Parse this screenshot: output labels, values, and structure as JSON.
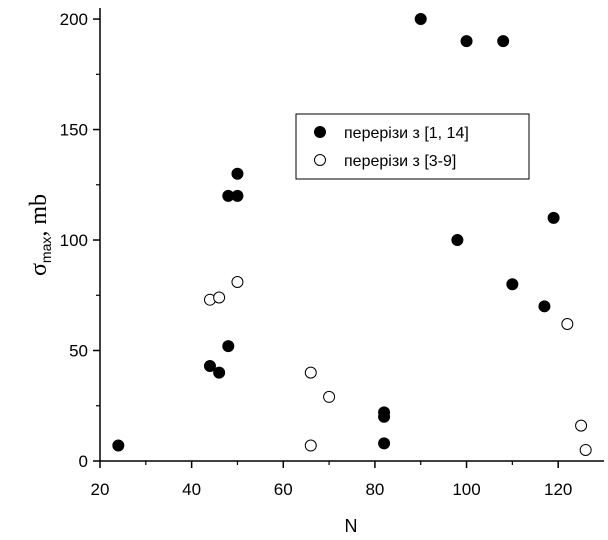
{
  "chart_data": {
    "type": "scatter",
    "xlabel": "N",
    "ylabel_main": "σ",
    "ylabel_sub": "max",
    "ylabel_unit": ", mb",
    "xlim": [
      20,
      130
    ],
    "ylim": [
      0,
      205
    ],
    "x_ticks": [
      20,
      40,
      60,
      80,
      100,
      120
    ],
    "y_ticks": [
      0,
      50,
      100,
      150,
      200
    ],
    "legend_position": "center-right",
    "series": [
      {
        "name": "перерізи з [1, 14]",
        "marker": "filled-circle",
        "color": "#000000",
        "points": [
          [
            24,
            7
          ],
          [
            44,
            43
          ],
          [
            46,
            40
          ],
          [
            48,
            52
          ],
          [
            48,
            120
          ],
          [
            50,
            120
          ],
          [
            50,
            130
          ],
          [
            82,
            22
          ],
          [
            82,
            20
          ],
          [
            82,
            8
          ],
          [
            90,
            200
          ],
          [
            98,
            100
          ],
          [
            100,
            190
          ],
          [
            108,
            190
          ],
          [
            110,
            80
          ],
          [
            117,
            70
          ],
          [
            119,
            110
          ]
        ]
      },
      {
        "name": "перерізи з [3-9]",
        "marker": "open-circle",
        "color": "#000000",
        "points": [
          [
            44,
            73
          ],
          [
            46,
            74
          ],
          [
            50,
            81
          ],
          [
            66,
            40
          ],
          [
            66,
            7
          ],
          [
            70,
            29
          ],
          [
            122,
            62
          ],
          [
            125,
            16
          ],
          [
            126,
            5
          ]
        ]
      }
    ]
  }
}
